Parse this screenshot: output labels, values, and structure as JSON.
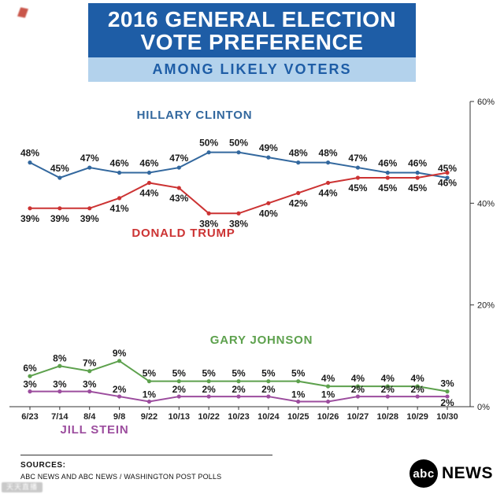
{
  "header": {
    "title_line1": "2016 GENERAL ELECTION",
    "title_line2": "VOTE PREFERENCE",
    "subtitle": "AMONG LIKELY VOTERS",
    "bg_color": "#1e5da6",
    "band_color": "#b3d2ec"
  },
  "chart_data": {
    "type": "line",
    "title": "2016 GENERAL ELECTION VOTE PREFERENCE",
    "subtitle": "AMONG LIKELY VOTERS",
    "x": [
      "6/23",
      "7/14",
      "8/4",
      "9/8",
      "9/22",
      "10/13",
      "10/22",
      "10/23",
      "10/24",
      "10/25",
      "10/26",
      "10/27",
      "10/28",
      "10/29",
      "10/30"
    ],
    "series": [
      {
        "name": "HILLARY CLINTON",
        "color": "#33689e",
        "values": [
          48,
          45,
          47,
          46,
          46,
          47,
          50,
          50,
          49,
          48,
          48,
          47,
          46,
          46,
          45
        ]
      },
      {
        "name": "DONALD TRUMP",
        "color": "#cc3333",
        "values": [
          39,
          39,
          39,
          41,
          44,
          43,
          38,
          38,
          40,
          42,
          44,
          45,
          45,
          45,
          46
        ]
      },
      {
        "name": "GARY JOHNSON",
        "color": "#5da14d",
        "values": [
          6,
          8,
          7,
          9,
          5,
          5,
          5,
          5,
          5,
          5,
          4,
          4,
          4,
          4,
          3
        ]
      },
      {
        "name": "JILL STEIN",
        "color": "#9c4d9e",
        "values": [
          3,
          3,
          3,
          2,
          1,
          2,
          2,
          2,
          2,
          1,
          1,
          2,
          2,
          2,
          2
        ]
      }
    ],
    "ylim": [
      0,
      60
    ],
    "yticks": [
      {
        "value": 0,
        "label": "0%"
      },
      {
        "value": 20,
        "label": "20%"
      },
      {
        "value": 40,
        "label": "40%"
      },
      {
        "value": 60,
        "label": "60%"
      }
    ],
    "grid": false,
    "y_axis_side": "right",
    "legend_position": "inline-labels",
    "point_label_format": "percent"
  },
  "footer": {
    "sources_label": "SOURCES:",
    "sources_text": "ABC NEWS AND ABC NEWS / WASHINGTON POST POLLS",
    "logo": {
      "abc": "abc",
      "news": "NEWS"
    }
  },
  "watermark": {
    "text": "天天直播"
  }
}
